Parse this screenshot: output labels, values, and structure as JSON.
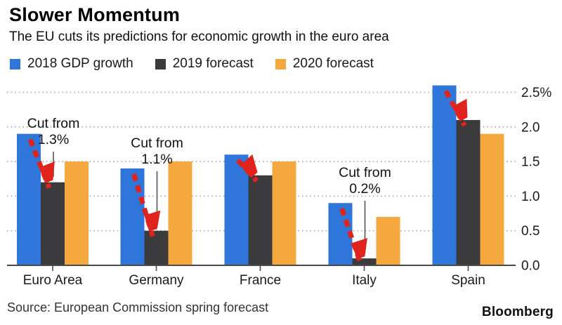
{
  "header": {
    "title": "Slower Momentum",
    "subtitle": "The EU cuts its predictions for economic growth in the euro area"
  },
  "footer": {
    "source": "Source: European Commission spring forecast",
    "brand": "Bloomberg"
  },
  "chart_data": {
    "type": "bar",
    "title": "Slower Momentum",
    "subtitle": "The EU cuts its predictions for economic growth in the euro area",
    "categories": [
      "Euro Area",
      "Germany",
      "France",
      "Italy",
      "Spain"
    ],
    "series": [
      {
        "name": "2018 GDP growth",
        "color": "#2e76d9",
        "values": [
          1.9,
          1.4,
          1.6,
          0.9,
          2.6
        ]
      },
      {
        "name": "2019 forecast",
        "color": "#3b3b3d",
        "values": [
          1.2,
          0.5,
          1.3,
          0.1,
          2.1
        ]
      },
      {
        "name": "2020 forecast",
        "color": "#f5a83e",
        "values": [
          1.5,
          1.5,
          1.5,
          0.7,
          1.9
        ]
      }
    ],
    "ylim": [
      0,
      2.5
    ],
    "ytick_labels": [
      "0.0",
      "0.5",
      "1.0",
      "1.5",
      "2.0",
      "2.5%"
    ],
    "yaxis_side": "right",
    "grid": "horizontal-dotted",
    "legend_position": "top",
    "annotations": [
      {
        "category": "Euro Area",
        "lines": [
          "Cut from",
          "1.3%"
        ]
      },
      {
        "category": "Germany",
        "lines": [
          "Cut from",
          "1.1%"
        ]
      },
      {
        "category": "Italy",
        "lines": [
          "Cut from",
          "0.2%"
        ]
      }
    ],
    "arrows": {
      "color": "#e0231c",
      "from_series": "2018 GDP growth",
      "to_series": "2019 forecast",
      "categories": [
        "Euro Area",
        "Germany",
        "France",
        "Italy",
        "Spain"
      ]
    },
    "style_colors": {
      "grid": "#a8a8a8",
      "axis": "#4a4a4a",
      "text": "#1a1a1a",
      "annotation_line": "#555555"
    }
  }
}
